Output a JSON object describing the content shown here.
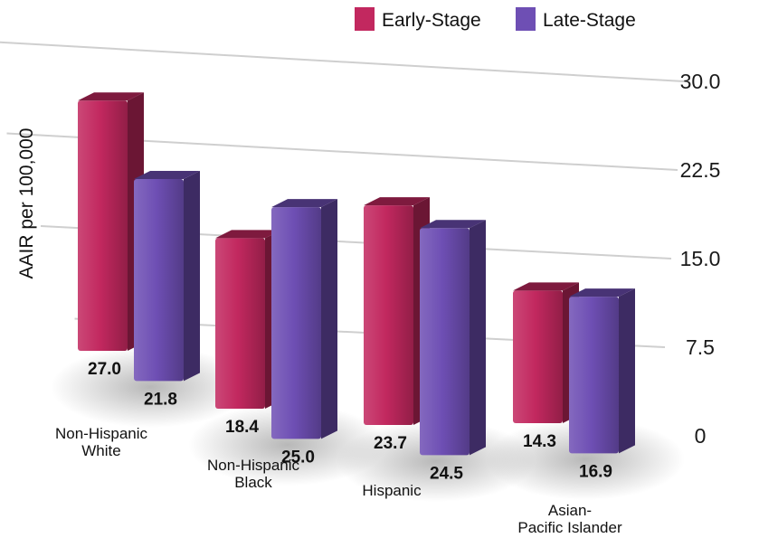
{
  "chart_data": {
    "type": "bar",
    "ylabel": "AAIR per 100,000",
    "ylim": [
      0,
      30
    ],
    "y_ticks": [
      "0",
      "7.5",
      "15.0",
      "22.5",
      "30.0"
    ],
    "y_tick_values": [
      0,
      7.5,
      15,
      22.5,
      30
    ],
    "grid": true,
    "legend_position": "top-right",
    "categories": [
      [
        "Non-Hispanic",
        "White"
      ],
      [
        "Non-Hispanic",
        "Black"
      ],
      [
        "Hispanic"
      ],
      [
        "Asian-",
        "Pacific Islander"
      ]
    ],
    "series": [
      {
        "name": "Early-Stage",
        "color": "#c2285f",
        "values": [
          27.0,
          18.4,
          23.7,
          14.3
        ],
        "labels": [
          "27.0",
          "18.4",
          "23.7",
          "14.3"
        ]
      },
      {
        "name": "Late-Stage",
        "color": "#6e4fb4",
        "values": [
          21.8,
          25.0,
          24.5,
          16.9
        ],
        "labels": [
          "21.8",
          "25.0",
          "24.5",
          "16.9"
        ]
      }
    ]
  }
}
